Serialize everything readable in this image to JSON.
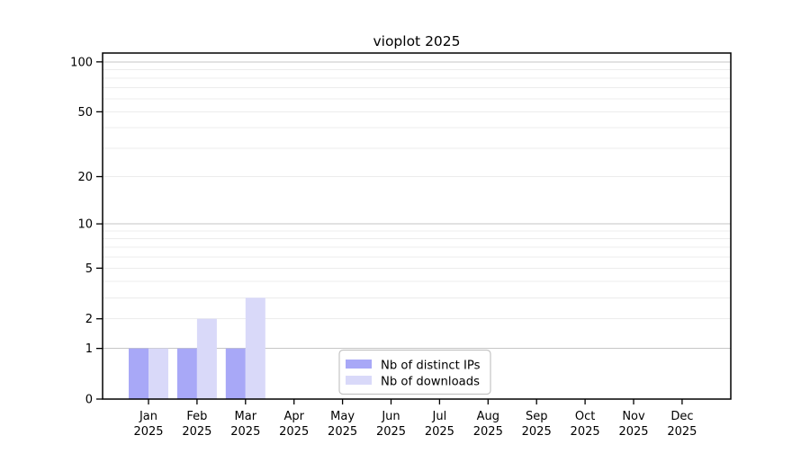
{
  "title": "vioplot 2025",
  "colors": {
    "distinct_ips": "#a8a8f7",
    "downloads": "#d9d9f9",
    "axis": "#000000",
    "grid_major": "#c6c6c6",
    "grid_minor": "#ececec",
    "legend_border": "#c4c4c4",
    "background": "#ffffff",
    "text": "#000000"
  },
  "legend": {
    "items": [
      {
        "label": "Nb of distinct IPs",
        "color": "#a8a8f7"
      },
      {
        "label": "Nb of downloads",
        "color": "#d9d9f9"
      }
    ],
    "position": "inside-bottom-center"
  },
  "chart_data": {
    "type": "bar",
    "title": "vioplot 2025",
    "categories": [
      "Jan",
      "Feb",
      "Mar",
      "Apr",
      "May",
      "Jun",
      "Jul",
      "Aug",
      "Sep",
      "Oct",
      "Nov",
      "Dec"
    ],
    "category_year": "2025",
    "series": [
      {
        "name": "Nb of distinct IPs",
        "color": "#a8a8f7",
        "values": [
          1,
          1,
          1,
          0,
          0,
          0,
          0,
          0,
          0,
          0,
          0,
          0
        ]
      },
      {
        "name": "Nb of downloads",
        "color": "#d9d9f9",
        "values": [
          1,
          2,
          3,
          0,
          0,
          0,
          0,
          0,
          0,
          0,
          0,
          0
        ]
      }
    ],
    "xlabel": "",
    "ylabel": "",
    "yscale": "log1p",
    "ylim": [
      0,
      113
    ],
    "y_tick_values": [
      0,
      1,
      2,
      5,
      10,
      20,
      50,
      100
    ],
    "gridlines_major": [
      1,
      10,
      100
    ],
    "gridlines_minor": [
      2,
      3,
      4,
      5,
      6,
      7,
      8,
      9,
      20,
      30,
      40,
      50,
      60,
      70,
      80,
      90
    ],
    "grid": true,
    "legend_position": "inside-bottom-center"
  }
}
